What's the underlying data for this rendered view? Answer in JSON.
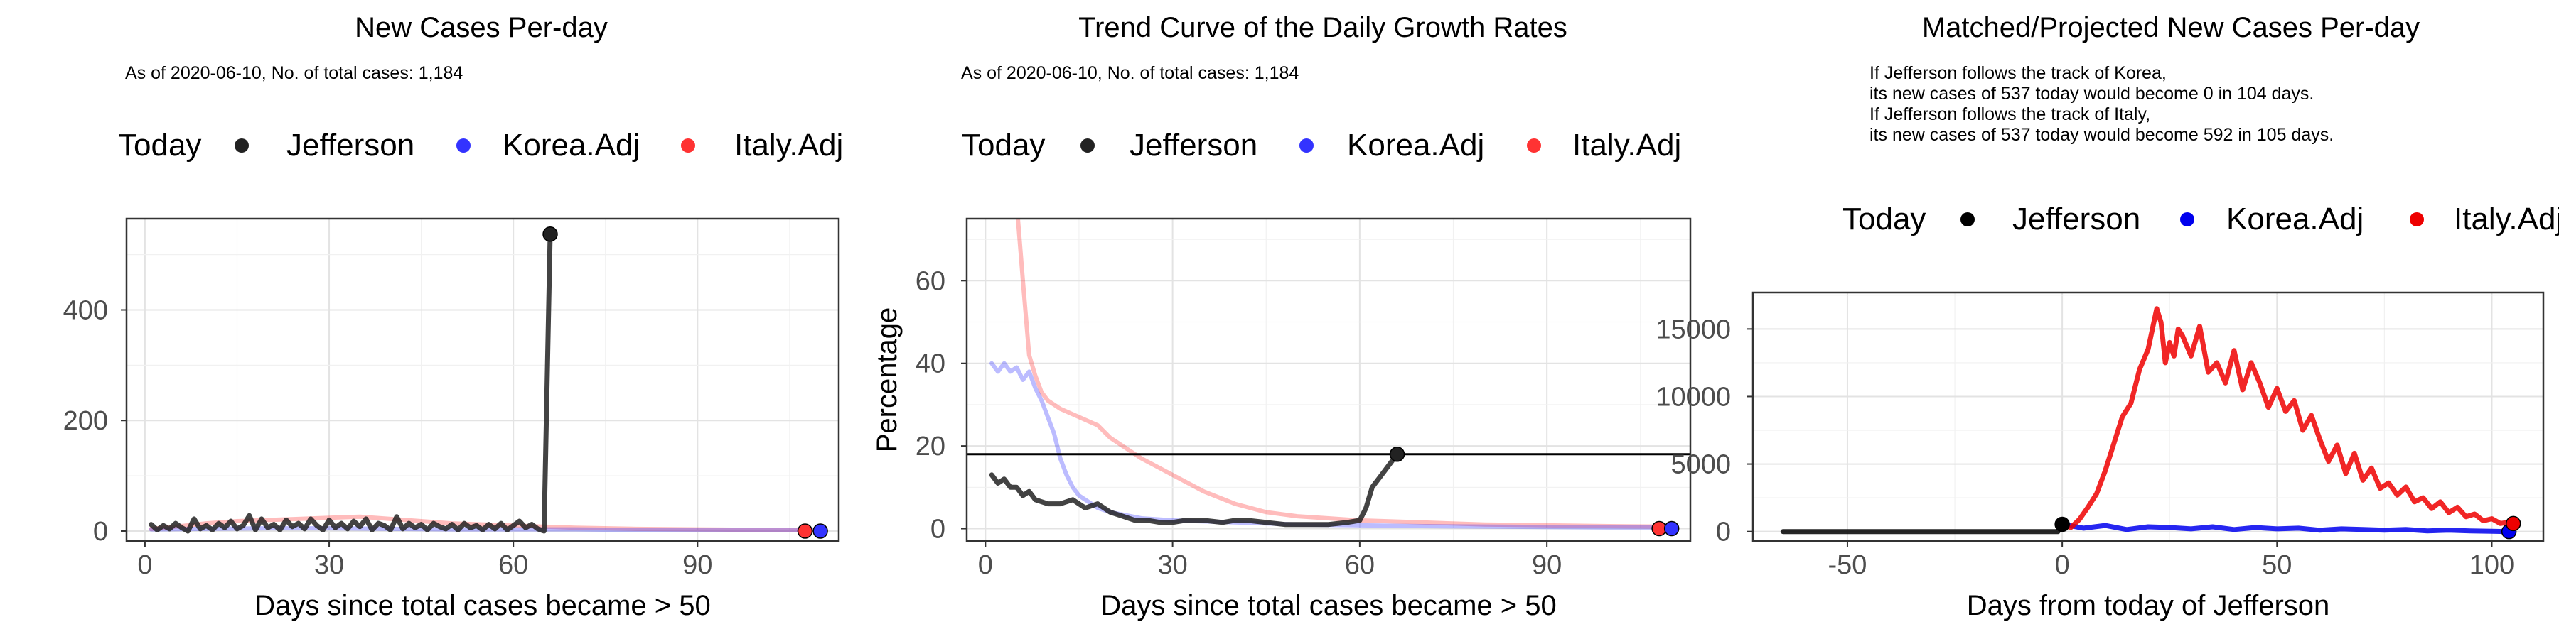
{
  "chart_data": [
    {
      "type": "line",
      "title": "New Cases Per-day",
      "subtitle_lines": [
        "As of 2020-06-10, No. of total cases: 1,184"
      ],
      "xlabel": "Days since total cases became > 50",
      "ylabel": "",
      "xlim": [
        -3,
        113
      ],
      "ylim": [
        -18,
        565
      ],
      "xticks": [
        0,
        30,
        60,
        90
      ],
      "xtick_labels": [
        "0",
        "30",
        "60",
        "90"
      ],
      "yticks": [
        0,
        200,
        400
      ],
      "ytick_labels": [
        "0",
        "200",
        "400"
      ],
      "grid": true,
      "legend": {
        "title": "Today",
        "position": "top",
        "entries": [
          "Jefferson",
          "Korea.Adj",
          "Italy.Adj"
        ]
      },
      "colors": {
        "Jefferson": "#222222",
        "Korea.Adj": "#3333ff",
        "Italy.Adj": "#ff3333"
      },
      "series": [
        {
          "name": "Italy.Adj",
          "faded": true,
          "x": [
            1,
            5,
            10,
            15,
            20,
            25,
            30,
            35,
            40,
            45,
            50,
            55,
            60,
            65,
            70,
            80,
            90,
            100,
            108
          ],
          "y": [
            4,
            8,
            14,
            18,
            20,
            22,
            24,
            26,
            22,
            18,
            14,
            12,
            10,
            8,
            6,
            4,
            3,
            2,
            2
          ]
        },
        {
          "name": "Korea.Adj",
          "faded": true,
          "x": [
            1,
            10,
            20,
            30,
            40,
            50,
            60,
            70,
            80,
            90,
            100,
            110
          ],
          "y": [
            3,
            4,
            5,
            5,
            4,
            3,
            3,
            3,
            2,
            2,
            2,
            2
          ]
        },
        {
          "name": "Jefferson",
          "x": [
            1,
            2,
            3,
            4,
            5,
            6,
            7,
            8,
            9,
            10,
            11,
            12,
            13,
            14,
            15,
            16,
            17,
            18,
            19,
            20,
            21,
            22,
            23,
            24,
            25,
            26,
            27,
            28,
            29,
            30,
            31,
            32,
            33,
            34,
            35,
            36,
            37,
            38,
            39,
            40,
            41,
            42,
            43,
            44,
            45,
            46,
            47,
            48,
            49,
            50,
            51,
            52,
            53,
            54,
            55,
            56,
            57,
            58,
            59,
            60,
            61,
            62,
            63,
            64,
            65,
            66
          ],
          "y": [
            12,
            2,
            10,
            4,
            14,
            6,
            0,
            22,
            4,
            10,
            2,
            14,
            6,
            18,
            4,
            10,
            28,
            2,
            22,
            6,
            12,
            2,
            20,
            8,
            14,
            4,
            22,
            10,
            2,
            20,
            6,
            14,
            4,
            18,
            8,
            22,
            2,
            14,
            10,
            2,
            26,
            4,
            14,
            6,
            12,
            2,
            14,
            8,
            4,
            12,
            2,
            14,
            6,
            10,
            2,
            12,
            4,
            14,
            2,
            10,
            18,
            6,
            12,
            4,
            0,
            537
          ]
        }
      ],
      "today_points": [
        {
          "name": "Jefferson",
          "x": 66,
          "y": 537
        },
        {
          "name": "Italy.Adj",
          "x": 107.5,
          "y": 0
        },
        {
          "name": "Korea.Adj",
          "x": 110,
          "y": 0
        }
      ]
    },
    {
      "type": "line",
      "title": "Trend Curve of the Daily Growth Rates",
      "subtitle_lines": [
        "As of 2020-06-10, No. of total cases: 1,184"
      ],
      "xlabel": "Days since total cases became > 50",
      "ylabel": "Percentage",
      "xlim": [
        -3,
        113
      ],
      "ylim": [
        -3,
        75
      ],
      "xticks": [
        0,
        30,
        60,
        90
      ],
      "xtick_labels": [
        "0",
        "30",
        "60",
        "90"
      ],
      "yticks": [
        0,
        20,
        40,
        60
      ],
      "ytick_labels": [
        "0",
        "20",
        "40",
        "60"
      ],
      "grid": true,
      "hline": 18,
      "legend": {
        "title": "Today",
        "position": "top",
        "entries": [
          "Jefferson",
          "Korea.Adj",
          "Italy.Adj"
        ]
      },
      "colors": {
        "Jefferson": "#222222",
        "Korea.Adj": "#3333ff",
        "Italy.Adj": "#ff3333"
      },
      "series": [
        {
          "name": "Italy.Adj",
          "faded": true,
          "x": [
            5.2,
            6,
            7,
            8,
            9,
            10,
            12,
            15,
            18,
            20,
            25,
            30,
            35,
            40,
            45,
            50,
            55,
            60,
            70,
            80,
            90,
            100,
            108
          ],
          "y": [
            75,
            60,
            42,
            37,
            33,
            31,
            29,
            27,
            25,
            22,
            17,
            13,
            9,
            6,
            4,
            3,
            2.5,
            2,
            1.5,
            1,
            0.8,
            0.6,
            0.5
          ]
        },
        {
          "name": "Korea.Adj",
          "faded": true,
          "x": [
            1,
            2,
            3,
            4,
            5,
            6,
            7,
            8,
            9,
            10,
            11,
            12,
            13,
            14,
            15,
            16,
            18,
            20,
            25,
            30,
            40,
            50,
            60,
            70,
            80,
            90,
            100,
            110
          ],
          "y": [
            40,
            38,
            40,
            38,
            39,
            36,
            38,
            34,
            31,
            27,
            23,
            17,
            13,
            10,
            8,
            7,
            5,
            4,
            2.5,
            2,
            1.5,
            1,
            0.8,
            0.6,
            0.5,
            0.4,
            0.3,
            0.3
          ]
        },
        {
          "name": "Jefferson",
          "x": [
            1,
            2,
            3,
            4,
            5,
            6,
            7,
            8,
            10,
            12,
            14,
            16,
            18,
            20,
            22,
            24,
            26,
            28,
            30,
            32,
            35,
            38,
            40,
            42,
            45,
            48,
            50,
            52,
            55,
            58,
            60,
            61,
            62,
            63,
            64,
            65,
            66
          ],
          "y": [
            13,
            11,
            12,
            10,
            10,
            8,
            9,
            7,
            6,
            6,
            7,
            5,
            6,
            4,
            3,
            2,
            2,
            1.5,
            1.5,
            2,
            2,
            1.5,
            2,
            2,
            1.5,
            1,
            1,
            1,
            1,
            1.5,
            2,
            5,
            10,
            12,
            14,
            16,
            18
          ]
        }
      ],
      "today_points": [
        {
          "name": "Jefferson",
          "x": 66,
          "y": 18
        },
        {
          "name": "Italy.Adj",
          "x": 108,
          "y": 0
        },
        {
          "name": "Korea.Adj",
          "x": 110,
          "y": 0
        }
      ]
    },
    {
      "type": "line",
      "title": "Matched/Projected New Cases Per-day",
      "subtitle_lines": [
        "If Jefferson follows the track of Korea,",
        "its new cases of 537 today would become 0 in 104 days.",
        "If Jefferson follows the track of Italy,",
        "its new cases of 537 today would become 592 in 105 days."
      ],
      "xlabel": "Days from today of Jefferson",
      "ylabel": "",
      "xlim": [
        -72,
        112
      ],
      "ylim": [
        -700,
        17700
      ],
      "xticks": [
        -50,
        0,
        50,
        100
      ],
      "xtick_labels": [
        "-50",
        "0",
        "50",
        "100"
      ],
      "yticks": [
        0,
        5000,
        10000,
        15000
      ],
      "ytick_labels": [
        "0",
        "5000",
        "10000",
        "15000"
      ],
      "grid": true,
      "legend": {
        "title": "Today",
        "position": "top",
        "entries": [
          "Jefferson",
          "Korea.Adj",
          "Italy.Adj"
        ]
      },
      "colors": {
        "Jefferson": "#000000",
        "Korea.Adj": "#0000ee",
        "Italy.Adj": "#ee0000"
      },
      "series": [
        {
          "name": "Jefferson",
          "x": [
            -65,
            -55,
            -45,
            -35,
            -25,
            -15,
            -5,
            -1,
            0
          ],
          "y": [
            0,
            0,
            0,
            0,
            0,
            0,
            0,
            0,
            537
          ]
        },
        {
          "name": "Korea.Adj",
          "x": [
            0,
            5,
            10,
            15,
            20,
            25,
            30,
            35,
            40,
            45,
            50,
            55,
            60,
            65,
            70,
            75,
            80,
            85,
            90,
            95,
            100,
            104
          ],
          "y": [
            537,
            250,
            450,
            150,
            350,
            300,
            200,
            350,
            150,
            300,
            200,
            250,
            100,
            200,
            150,
            100,
            150,
            50,
            100,
            50,
            20,
            0
          ]
        },
        {
          "name": "Italy.Adj",
          "x": [
            0,
            2,
            4,
            6,
            8,
            10,
            12,
            14,
            16,
            18,
            20,
            21,
            22,
            23,
            24,
            25,
            26,
            27,
            28,
            30,
            32,
            34,
            36,
            38,
            40,
            42,
            44,
            46,
            48,
            50,
            52,
            54,
            56,
            58,
            60,
            62,
            64,
            66,
            68,
            70,
            72,
            74,
            76,
            78,
            80,
            82,
            84,
            86,
            88,
            90,
            92,
            94,
            96,
            98,
            100,
            102,
            104,
            105
          ],
          "y": [
            537,
            300,
            900,
            1800,
            2800,
            4500,
            6500,
            8500,
            9500,
            12000,
            13500,
            15000,
            16500,
            15500,
            12500,
            14000,
            13000,
            15000,
            14500,
            13000,
            15200,
            11800,
            12500,
            11000,
            13400,
            10500,
            12500,
            11000,
            9200,
            10600,
            8900,
            9700,
            7500,
            8600,
            6800,
            5200,
            6400,
            4300,
            5800,
            3800,
            4700,
            3200,
            3600,
            2700,
            3300,
            2200,
            2500,
            1700,
            2200,
            1400,
            1800,
            1100,
            1300,
            800,
            950,
            600,
            700,
            592
          ]
        }
      ],
      "today_points": [
        {
          "name": "Jefferson",
          "x": 0,
          "y": 537
        },
        {
          "name": "Korea.Adj",
          "x": 104,
          "y": 0
        },
        {
          "name": "Italy.Adj",
          "x": 105,
          "y": 592
        }
      ]
    }
  ]
}
